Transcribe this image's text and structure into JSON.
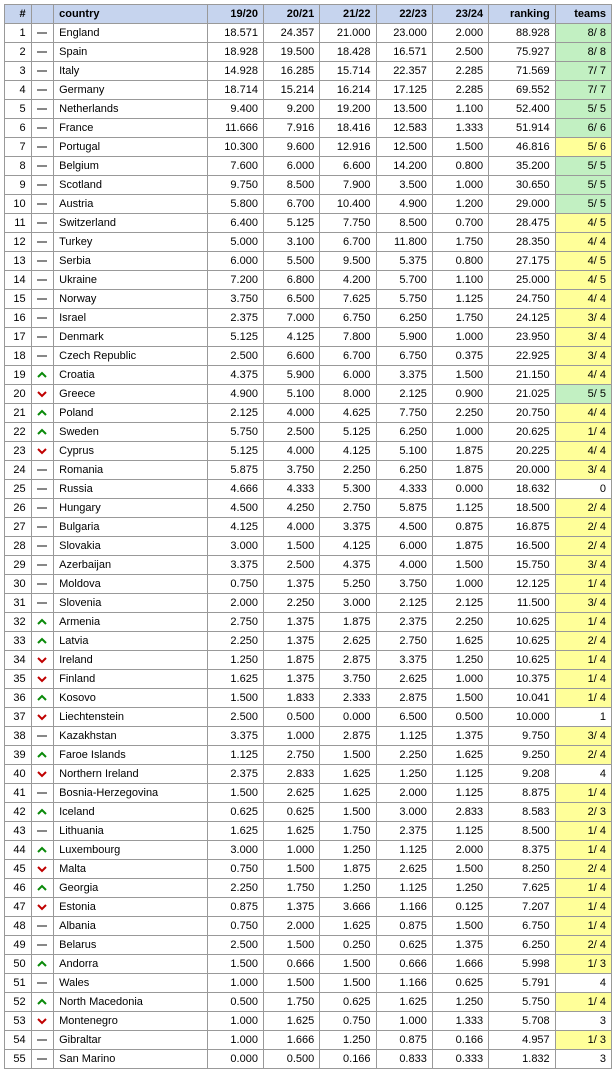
{
  "headers": {
    "rank": "#",
    "mov": "",
    "country": "country",
    "s1": "19/20",
    "s2": "20/21",
    "s3": "21/22",
    "s4": "22/23",
    "s5": "23/24",
    "ranking": "ranking",
    "teams": "teams"
  },
  "teams_colors": {
    "tier1": "#c2f0c2",
    "tier2": "#ffff99",
    "none": "#ffffff"
  },
  "rows": [
    {
      "rank": 1,
      "mov": "same",
      "country": "England",
      "s1": "18.571",
      "s2": "24.357",
      "s3": "21.000",
      "s4": "23.000",
      "s5": "2.000",
      "ranking": "88.928",
      "teams": "8/ 8",
      "tier": "tier1"
    },
    {
      "rank": 2,
      "mov": "same",
      "country": "Spain",
      "s1": "18.928",
      "s2": "19.500",
      "s3": "18.428",
      "s4": "16.571",
      "s5": "2.500",
      "ranking": "75.927",
      "teams": "8/ 8",
      "tier": "tier1"
    },
    {
      "rank": 3,
      "mov": "same",
      "country": "Italy",
      "s1": "14.928",
      "s2": "16.285",
      "s3": "15.714",
      "s4": "22.357",
      "s5": "2.285",
      "ranking": "71.569",
      "teams": "7/ 7",
      "tier": "tier1"
    },
    {
      "rank": 4,
      "mov": "same",
      "country": "Germany",
      "s1": "18.714",
      "s2": "15.214",
      "s3": "16.214",
      "s4": "17.125",
      "s5": "2.285",
      "ranking": "69.552",
      "teams": "7/ 7",
      "tier": "tier1"
    },
    {
      "rank": 5,
      "mov": "same",
      "country": "Netherlands",
      "s1": "9.400",
      "s2": "9.200",
      "s3": "19.200",
      "s4": "13.500",
      "s5": "1.100",
      "ranking": "52.400",
      "teams": "5/ 5",
      "tier": "tier1"
    },
    {
      "rank": 6,
      "mov": "same",
      "country": "France",
      "s1": "11.666",
      "s2": "7.916",
      "s3": "18.416",
      "s4": "12.583",
      "s5": "1.333",
      "ranking": "51.914",
      "teams": "6/ 6",
      "tier": "tier1"
    },
    {
      "rank": 7,
      "mov": "same",
      "country": "Portugal",
      "s1": "10.300",
      "s2": "9.600",
      "s3": "12.916",
      "s4": "12.500",
      "s5": "1.500",
      "ranking": "46.816",
      "teams": "5/ 6",
      "tier": "tier2"
    },
    {
      "rank": 8,
      "mov": "same",
      "country": "Belgium",
      "s1": "7.600",
      "s2": "6.000",
      "s3": "6.600",
      "s4": "14.200",
      "s5": "0.800",
      "ranking": "35.200",
      "teams": "5/ 5",
      "tier": "tier1"
    },
    {
      "rank": 9,
      "mov": "same",
      "country": "Scotland",
      "s1": "9.750",
      "s2": "8.500",
      "s3": "7.900",
      "s4": "3.500",
      "s5": "1.000",
      "ranking": "30.650",
      "teams": "5/ 5",
      "tier": "tier1"
    },
    {
      "rank": 10,
      "mov": "same",
      "country": "Austria",
      "s1": "5.800",
      "s2": "6.700",
      "s3": "10.400",
      "s4": "4.900",
      "s5": "1.200",
      "ranking": "29.000",
      "teams": "5/ 5",
      "tier": "tier1"
    },
    {
      "rank": 11,
      "mov": "same",
      "country": "Switzerland",
      "s1": "6.400",
      "s2": "5.125",
      "s3": "7.750",
      "s4": "8.500",
      "s5": "0.700",
      "ranking": "28.475",
      "teams": "4/ 5",
      "tier": "tier2"
    },
    {
      "rank": 12,
      "mov": "same",
      "country": "Turkey",
      "s1": "5.000",
      "s2": "3.100",
      "s3": "6.700",
      "s4": "11.800",
      "s5": "1.750",
      "ranking": "28.350",
      "teams": "4/ 4",
      "tier": "tier2"
    },
    {
      "rank": 13,
      "mov": "same",
      "country": "Serbia",
      "s1": "6.000",
      "s2": "5.500",
      "s3": "9.500",
      "s4": "5.375",
      "s5": "0.800",
      "ranking": "27.175",
      "teams": "4/ 5",
      "tier": "tier2"
    },
    {
      "rank": 14,
      "mov": "same",
      "country": "Ukraine",
      "s1": "7.200",
      "s2": "6.800",
      "s3": "4.200",
      "s4": "5.700",
      "s5": "1.100",
      "ranking": "25.000",
      "teams": "4/ 5",
      "tier": "tier2"
    },
    {
      "rank": 15,
      "mov": "same",
      "country": "Norway",
      "s1": "3.750",
      "s2": "6.500",
      "s3": "7.625",
      "s4": "5.750",
      "s5": "1.125",
      "ranking": "24.750",
      "teams": "4/ 4",
      "tier": "tier2"
    },
    {
      "rank": 16,
      "mov": "same",
      "country": "Israel",
      "s1": "2.375",
      "s2": "7.000",
      "s3": "6.750",
      "s4": "6.250",
      "s5": "1.750",
      "ranking": "24.125",
      "teams": "3/ 4",
      "tier": "tier2"
    },
    {
      "rank": 17,
      "mov": "same",
      "country": "Denmark",
      "s1": "5.125",
      "s2": "4.125",
      "s3": "7.800",
      "s4": "5.900",
      "s5": "1.000",
      "ranking": "23.950",
      "teams": "3/ 4",
      "tier": "tier2"
    },
    {
      "rank": 18,
      "mov": "same",
      "country": "Czech Republic",
      "s1": "2.500",
      "s2": "6.600",
      "s3": "6.700",
      "s4": "6.750",
      "s5": "0.375",
      "ranking": "22.925",
      "teams": "3/ 4",
      "tier": "tier2"
    },
    {
      "rank": 19,
      "mov": "up",
      "country": "Croatia",
      "s1": "4.375",
      "s2": "5.900",
      "s3": "6.000",
      "s4": "3.375",
      "s5": "1.500",
      "ranking": "21.150",
      "teams": "4/ 4",
      "tier": "tier2"
    },
    {
      "rank": 20,
      "mov": "down",
      "country": "Greece",
      "s1": "4.900",
      "s2": "5.100",
      "s3": "8.000",
      "s4": "2.125",
      "s5": "0.900",
      "ranking": "21.025",
      "teams": "5/ 5",
      "tier": "tier1"
    },
    {
      "rank": 21,
      "mov": "up",
      "country": "Poland",
      "s1": "2.125",
      "s2": "4.000",
      "s3": "4.625",
      "s4": "7.750",
      "s5": "2.250",
      "ranking": "20.750",
      "teams": "4/ 4",
      "tier": "tier2"
    },
    {
      "rank": 22,
      "mov": "up",
      "country": "Sweden",
      "s1": "5.750",
      "s2": "2.500",
      "s3": "5.125",
      "s4": "6.250",
      "s5": "1.000",
      "ranking": "20.625",
      "teams": "1/ 4",
      "tier": "tier2"
    },
    {
      "rank": 23,
      "mov": "down",
      "country": "Cyprus",
      "s1": "5.125",
      "s2": "4.000",
      "s3": "4.125",
      "s4": "5.100",
      "s5": "1.875",
      "ranking": "20.225",
      "teams": "4/ 4",
      "tier": "tier2"
    },
    {
      "rank": 24,
      "mov": "same",
      "country": "Romania",
      "s1": "5.875",
      "s2": "3.750",
      "s3": "2.250",
      "s4": "6.250",
      "s5": "1.875",
      "ranking": "20.000",
      "teams": "3/ 4",
      "tier": "tier2"
    },
    {
      "rank": 25,
      "mov": "same",
      "country": "Russia",
      "s1": "4.666",
      "s2": "4.333",
      "s3": "5.300",
      "s4": "4.333",
      "s5": "0.000",
      "ranking": "18.632",
      "teams": "0",
      "tier": "none"
    },
    {
      "rank": 26,
      "mov": "same",
      "country": "Hungary",
      "s1": "4.500",
      "s2": "4.250",
      "s3": "2.750",
      "s4": "5.875",
      "s5": "1.125",
      "ranking": "18.500",
      "teams": "2/ 4",
      "tier": "tier2"
    },
    {
      "rank": 27,
      "mov": "same",
      "country": "Bulgaria",
      "s1": "4.125",
      "s2": "4.000",
      "s3": "3.375",
      "s4": "4.500",
      "s5": "0.875",
      "ranking": "16.875",
      "teams": "2/ 4",
      "tier": "tier2"
    },
    {
      "rank": 28,
      "mov": "same",
      "country": "Slovakia",
      "s1": "3.000",
      "s2": "1.500",
      "s3": "4.125",
      "s4": "6.000",
      "s5": "1.875",
      "ranking": "16.500",
      "teams": "2/ 4",
      "tier": "tier2"
    },
    {
      "rank": 29,
      "mov": "same",
      "country": "Azerbaijan",
      "s1": "3.375",
      "s2": "2.500",
      "s3": "4.375",
      "s4": "4.000",
      "s5": "1.500",
      "ranking": "15.750",
      "teams": "3/ 4",
      "tier": "tier2"
    },
    {
      "rank": 30,
      "mov": "same",
      "country": "Moldova",
      "s1": "0.750",
      "s2": "1.375",
      "s3": "5.250",
      "s4": "3.750",
      "s5": "1.000",
      "ranking": "12.125",
      "teams": "1/ 4",
      "tier": "tier2"
    },
    {
      "rank": 31,
      "mov": "same",
      "country": "Slovenia",
      "s1": "2.000",
      "s2": "2.250",
      "s3": "3.000",
      "s4": "2.125",
      "s5": "2.125",
      "ranking": "11.500",
      "teams": "3/ 4",
      "tier": "tier2"
    },
    {
      "rank": 32,
      "mov": "up",
      "country": "Armenia",
      "s1": "2.750",
      "s2": "1.375",
      "s3": "1.875",
      "s4": "2.375",
      "s5": "2.250",
      "ranking": "10.625",
      "teams": "1/ 4",
      "tier": "tier2"
    },
    {
      "rank": 33,
      "mov": "up",
      "country": "Latvia",
      "s1": "2.250",
      "s2": "1.375",
      "s3": "2.625",
      "s4": "2.750",
      "s5": "1.625",
      "ranking": "10.625",
      "teams": "2/ 4",
      "tier": "tier2"
    },
    {
      "rank": 34,
      "mov": "down",
      "country": "Ireland",
      "s1": "1.250",
      "s2": "1.875",
      "s3": "2.875",
      "s4": "3.375",
      "s5": "1.250",
      "ranking": "10.625",
      "teams": "1/ 4",
      "tier": "tier2"
    },
    {
      "rank": 35,
      "mov": "down",
      "country": "Finland",
      "s1": "1.625",
      "s2": "1.375",
      "s3": "3.750",
      "s4": "2.625",
      "s5": "1.000",
      "ranking": "10.375",
      "teams": "1/ 4",
      "tier": "tier2"
    },
    {
      "rank": 36,
      "mov": "up",
      "country": "Kosovo",
      "s1": "1.500",
      "s2": "1.833",
      "s3": "2.333",
      "s4": "2.875",
      "s5": "1.500",
      "ranking": "10.041",
      "teams": "1/ 4",
      "tier": "tier2"
    },
    {
      "rank": 37,
      "mov": "down",
      "country": "Liechtenstein",
      "s1": "2.500",
      "s2": "0.500",
      "s3": "0.000",
      "s4": "6.500",
      "s5": "0.500",
      "ranking": "10.000",
      "teams": "1",
      "tier": "none"
    },
    {
      "rank": 38,
      "mov": "same",
      "country": "Kazakhstan",
      "s1": "3.375",
      "s2": "1.000",
      "s3": "2.875",
      "s4": "1.125",
      "s5": "1.375",
      "ranking": "9.750",
      "teams": "3/ 4",
      "tier": "tier2"
    },
    {
      "rank": 39,
      "mov": "up",
      "country": "Faroe Islands",
      "s1": "1.125",
      "s2": "2.750",
      "s3": "1.500",
      "s4": "2.250",
      "s5": "1.625",
      "ranking": "9.250",
      "teams": "2/ 4",
      "tier": "tier2"
    },
    {
      "rank": 40,
      "mov": "down",
      "country": "Northern Ireland",
      "s1": "2.375",
      "s2": "2.833",
      "s3": "1.625",
      "s4": "1.250",
      "s5": "1.125",
      "ranking": "9.208",
      "teams": "4",
      "tier": "none"
    },
    {
      "rank": 41,
      "mov": "same",
      "country": "Bosnia-Herzegovina",
      "s1": "1.500",
      "s2": "2.625",
      "s3": "1.625",
      "s4": "2.000",
      "s5": "1.125",
      "ranking": "8.875",
      "teams": "1/ 4",
      "tier": "tier2"
    },
    {
      "rank": 42,
      "mov": "up",
      "country": "Iceland",
      "s1": "0.625",
      "s2": "0.625",
      "s3": "1.500",
      "s4": "3.000",
      "s5": "2.833",
      "ranking": "8.583",
      "teams": "2/ 3",
      "tier": "tier2"
    },
    {
      "rank": 43,
      "mov": "same",
      "country": "Lithuania",
      "s1": "1.625",
      "s2": "1.625",
      "s3": "1.750",
      "s4": "2.375",
      "s5": "1.125",
      "ranking": "8.500",
      "teams": "1/ 4",
      "tier": "tier2"
    },
    {
      "rank": 44,
      "mov": "up",
      "country": "Luxembourg",
      "s1": "3.000",
      "s2": "1.000",
      "s3": "1.250",
      "s4": "1.125",
      "s5": "2.000",
      "ranking": "8.375",
      "teams": "1/ 4",
      "tier": "tier2"
    },
    {
      "rank": 45,
      "mov": "down",
      "country": "Malta",
      "s1": "0.750",
      "s2": "1.500",
      "s3": "1.875",
      "s4": "2.625",
      "s5": "1.500",
      "ranking": "8.250",
      "teams": "2/ 4",
      "tier": "tier2"
    },
    {
      "rank": 46,
      "mov": "up",
      "country": "Georgia",
      "s1": "2.250",
      "s2": "1.750",
      "s3": "1.250",
      "s4": "1.125",
      "s5": "1.250",
      "ranking": "7.625",
      "teams": "1/ 4",
      "tier": "tier2"
    },
    {
      "rank": 47,
      "mov": "down",
      "country": "Estonia",
      "s1": "0.875",
      "s2": "1.375",
      "s3": "3.666",
      "s4": "1.166",
      "s5": "0.125",
      "ranking": "7.207",
      "teams": "1/ 4",
      "tier": "tier2"
    },
    {
      "rank": 48,
      "mov": "same",
      "country": "Albania",
      "s1": "0.750",
      "s2": "2.000",
      "s3": "1.625",
      "s4": "0.875",
      "s5": "1.500",
      "ranking": "6.750",
      "teams": "1/ 4",
      "tier": "tier2"
    },
    {
      "rank": 49,
      "mov": "same",
      "country": "Belarus",
      "s1": "2.500",
      "s2": "1.500",
      "s3": "0.250",
      "s4": "0.625",
      "s5": "1.375",
      "ranking": "6.250",
      "teams": "2/ 4",
      "tier": "tier2"
    },
    {
      "rank": 50,
      "mov": "up",
      "country": "Andorra",
      "s1": "1.500",
      "s2": "0.666",
      "s3": "1.500",
      "s4": "0.666",
      "s5": "1.666",
      "ranking": "5.998",
      "teams": "1/ 3",
      "tier": "tier2"
    },
    {
      "rank": 51,
      "mov": "same",
      "country": "Wales",
      "s1": "1.000",
      "s2": "1.500",
      "s3": "1.500",
      "s4": "1.166",
      "s5": "0.625",
      "ranking": "5.791",
      "teams": "4",
      "tier": "none"
    },
    {
      "rank": 52,
      "mov": "up",
      "country": "North Macedonia",
      "s1": "0.500",
      "s2": "1.750",
      "s3": "0.625",
      "s4": "1.625",
      "s5": "1.250",
      "ranking": "5.750",
      "teams": "1/ 4",
      "tier": "tier2"
    },
    {
      "rank": 53,
      "mov": "down",
      "country": "Montenegro",
      "s1": "1.000",
      "s2": "1.625",
      "s3": "0.750",
      "s4": "1.000",
      "s5": "1.333",
      "ranking": "5.708",
      "teams": "3",
      "tier": "none"
    },
    {
      "rank": 54,
      "mov": "same",
      "country": "Gibraltar",
      "s1": "1.000",
      "s2": "1.666",
      "s3": "1.250",
      "s4": "0.875",
      "s5": "0.166",
      "ranking": "4.957",
      "teams": "1/ 3",
      "tier": "tier2"
    },
    {
      "rank": 55,
      "mov": "same",
      "country": "San Marino",
      "s1": "0.000",
      "s2": "0.500",
      "s3": "0.166",
      "s4": "0.833",
      "s5": "0.333",
      "ranking": "1.832",
      "teams": "3",
      "tier": "none"
    }
  ]
}
